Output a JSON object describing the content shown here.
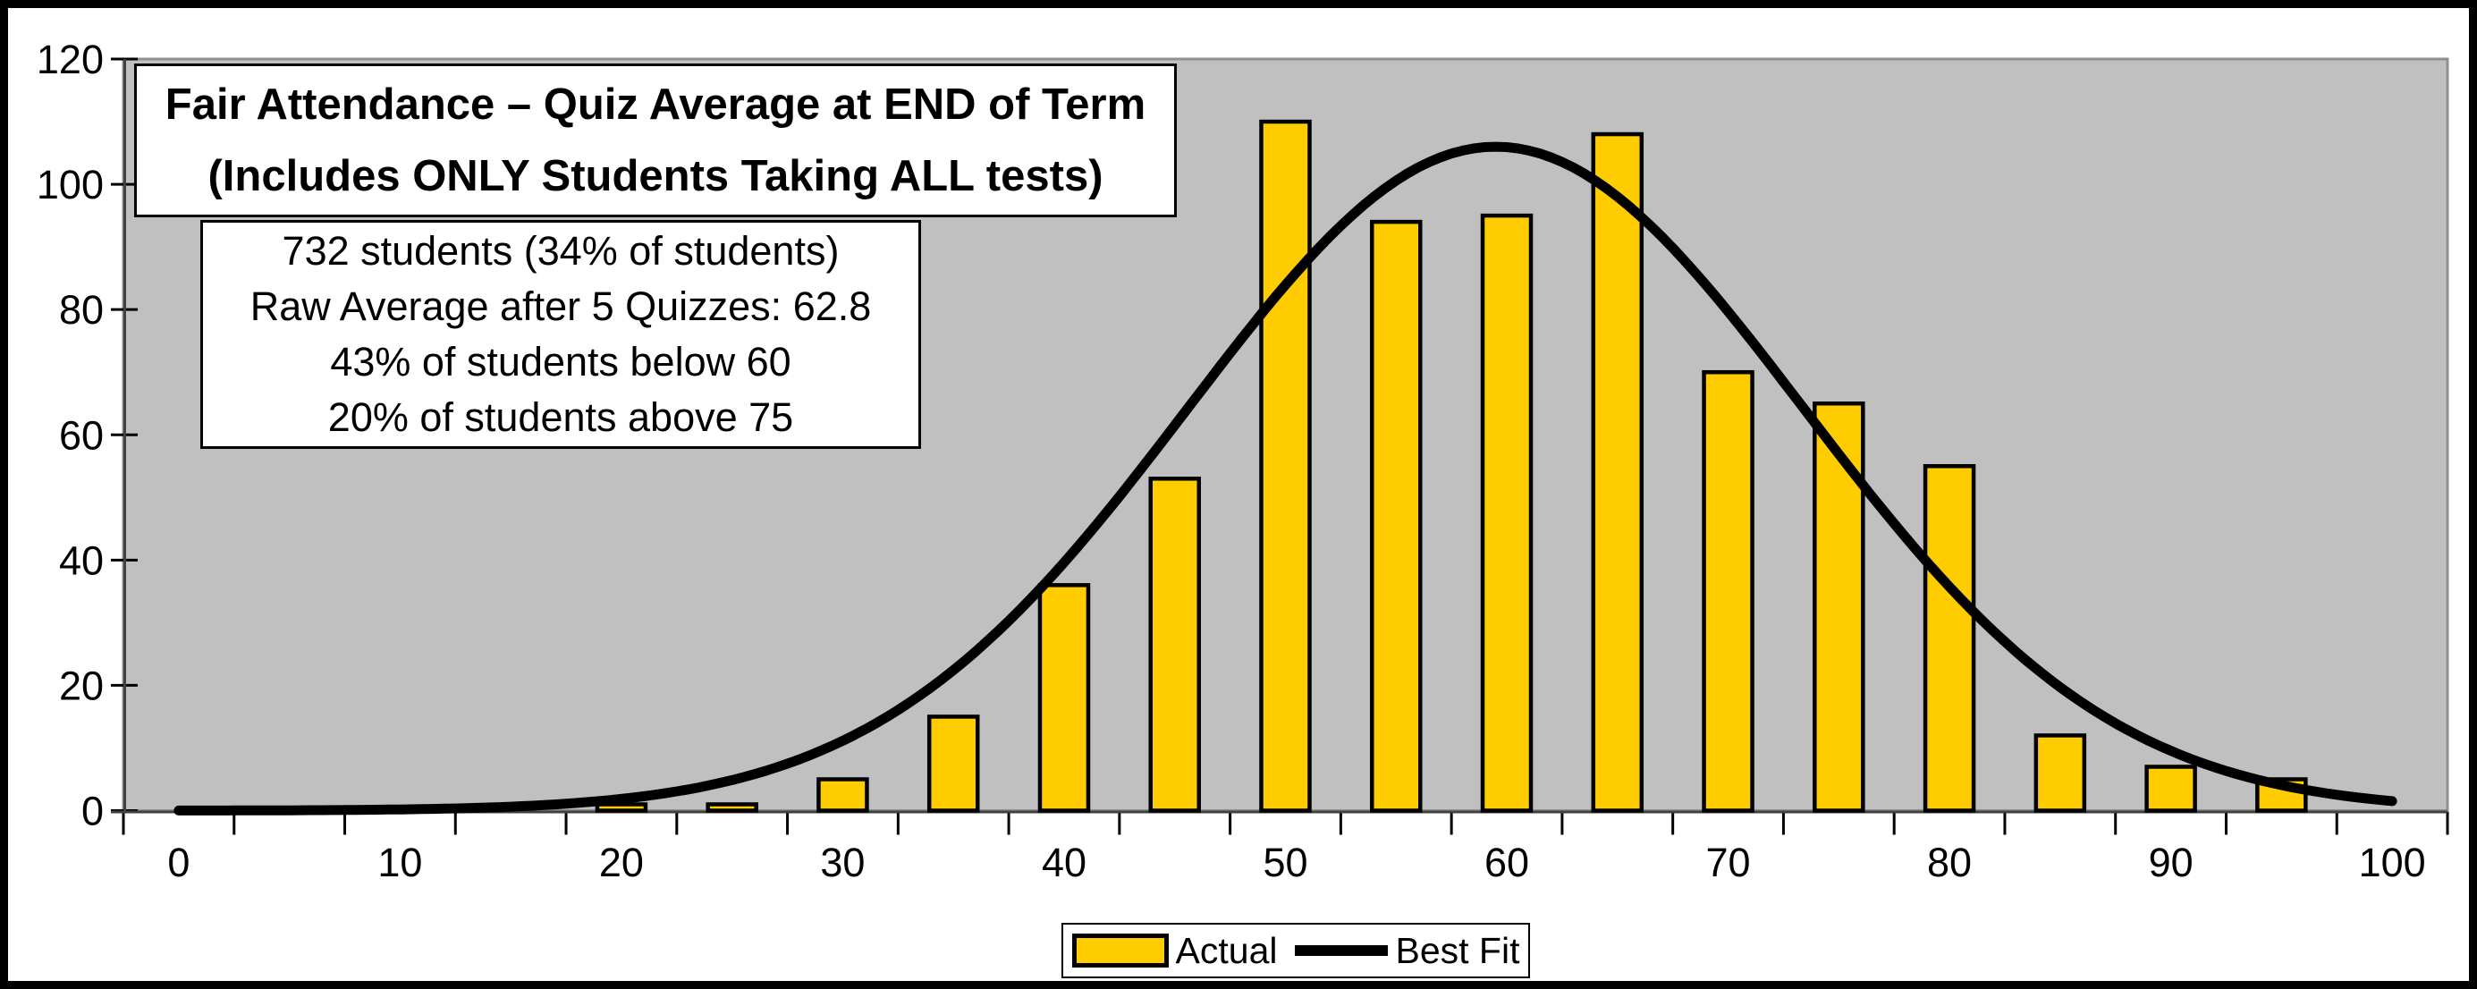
{
  "title_box": {
    "line1": "Fair Attendance – Quiz Average at END of Term",
    "line2": "(Includes ONLY Students Taking ALL tests)"
  },
  "stats_box": {
    "lines": [
      "732 students (34% of students)",
      "Raw Average after 5 Quizzes: 62.8",
      "43% of students below 60",
      "20% of students above 75"
    ]
  },
  "legend": {
    "items": [
      {
        "label": "Actual",
        "swatch": "bar",
        "color": "#FFCC00",
        "border": "#000000"
      },
      {
        "label": "Best Fit",
        "swatch": "line",
        "color": "#000000"
      }
    ]
  },
  "chart_data": {
    "type": "bar",
    "title": "Fair Attendance – Quiz Average at END of Term (Includes ONLY Students Taking ALL tests)",
    "categories": [
      0,
      5,
      10,
      15,
      20,
      25,
      30,
      35,
      40,
      45,
      50,
      55,
      60,
      65,
      70,
      75,
      80,
      85,
      90,
      95,
      100
    ],
    "series": [
      {
        "name": "Actual",
        "values": [
          0,
          0,
          0,
          0,
          1,
          1,
          5,
          15,
          36,
          53,
          110,
          94,
          95,
          108,
          70,
          65,
          55,
          12,
          7,
          5,
          0
        ]
      }
    ],
    "best_fit_curve": {
      "name": "Best Fit",
      "shape": "gaussian",
      "peak": 106,
      "mean": 59.5,
      "sigma": 13.9
    },
    "xticks": [
      0,
      10,
      20,
      30,
      40,
      50,
      60,
      70,
      80,
      90,
      100
    ],
    "yticks": [
      0,
      20,
      40,
      60,
      80,
      100,
      120
    ],
    "ylim": [
      0,
      120
    ],
    "xlim": [
      -2.5,
      102.5
    ],
    "grid": false,
    "legend_position": "bottom-center",
    "plot_bg": "#C0C0C0",
    "plot_border": "#8F8F8F",
    "axis_color": "#404040",
    "tick_color": "#000000",
    "bar_color": "#FFCC00",
    "bar_border": "#000000",
    "curve_color": "#000000"
  }
}
